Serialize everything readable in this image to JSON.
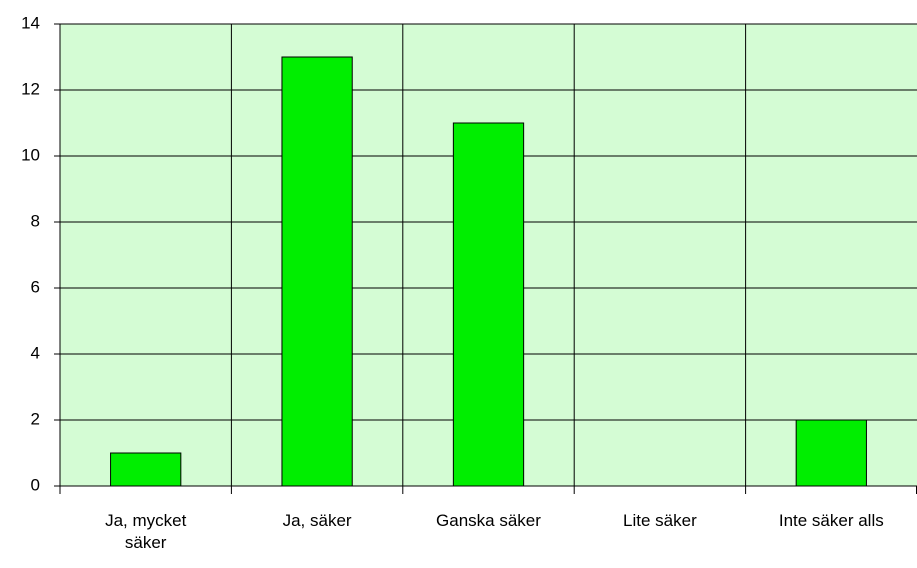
{
  "chart_data": {
    "type": "bar",
    "categories": [
      "Ja, mycket säker",
      "Ja, säker",
      "Ganska säker",
      "Lite säker",
      "Inte säker alls"
    ],
    "values": [
      1,
      13,
      11,
      0,
      2
    ],
    "color": "#00ee00",
    "ylim": [
      0,
      14
    ],
    "yticks": [
      0,
      2,
      4,
      6,
      8,
      10,
      12,
      14
    ],
    "grid": true
  }
}
